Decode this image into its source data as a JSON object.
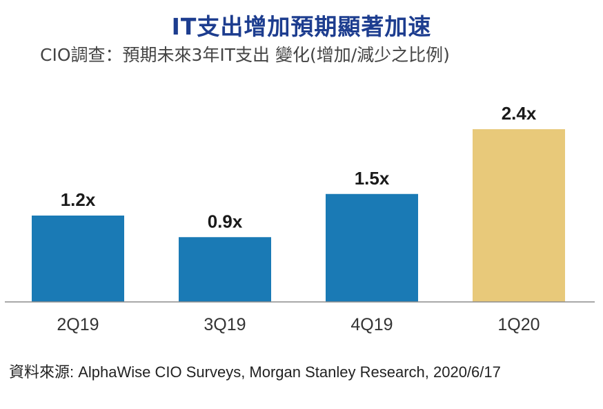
{
  "header": {
    "title": "IT支出增加預期顯著加速",
    "subtitle": "CIO調查：預期未來3年IT支出 變化(增加/減少之比例)"
  },
  "chart_data": {
    "type": "bar",
    "categories": [
      "2Q19",
      "3Q19",
      "4Q19",
      "1Q20"
    ],
    "values": [
      1.2,
      0.9,
      1.5,
      2.4
    ],
    "data_labels": [
      "1.2x",
      "0.9x",
      "1.5x",
      "2.4x"
    ],
    "bar_colors": [
      "#1a7ab5",
      "#1a7ab5",
      "#1a7ab5",
      "#e8c97a"
    ],
    "title": "",
    "xlabel": "",
    "ylabel": "",
    "ylim": [
      0,
      2.4
    ],
    "grid": false,
    "legend": "none"
  },
  "footer": {
    "source": "資料來源: AlphaWise CIO Surveys, Morgan Stanley Research, 2020/6/17"
  },
  "colors": {
    "title": "#1d3d8f",
    "baseline": "#8c8c8c"
  }
}
